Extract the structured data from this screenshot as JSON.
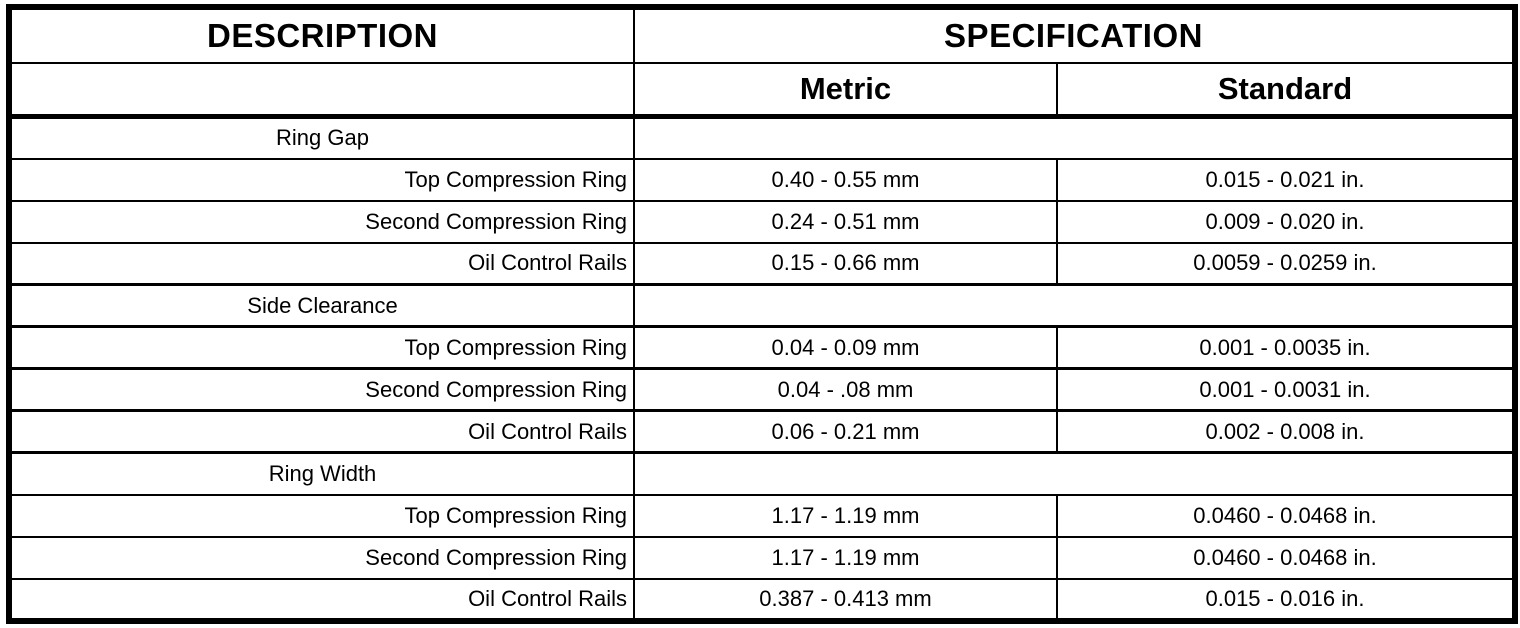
{
  "table": {
    "headers": {
      "description": "DESCRIPTION",
      "specification": "SPECIFICATION",
      "metric": "Metric",
      "standard": "Standard"
    },
    "rows": [
      {
        "type": "category",
        "label": "Ring Gap"
      },
      {
        "type": "item",
        "label": "Top Compression Ring",
        "metric": "0.40 - 0.55 mm",
        "standard": "0.015 - 0.021 in."
      },
      {
        "type": "item",
        "label": "Second Compression Ring",
        "metric": "0.24 - 0.51 mm",
        "standard": "0.009 - 0.020 in."
      },
      {
        "type": "item",
        "label": "Oil Control Rails",
        "metric": "0.15 - 0.66 mm",
        "standard": "0.0059 - 0.0259 in."
      },
      {
        "type": "category",
        "label": "Side Clearance"
      },
      {
        "type": "item",
        "label": "Top Compression Ring",
        "metric": "0.04 - 0.09 mm",
        "standard": "0.001 - 0.0035 in."
      },
      {
        "type": "item",
        "label": "Second Compression Ring",
        "metric": "0.04 - .08 mm",
        "standard": "0.001 - 0.0031 in."
      },
      {
        "type": "item",
        "label": "Oil Control Rails",
        "metric": "0.06 - 0.21 mm",
        "standard": "0.002 - 0.008 in."
      },
      {
        "type": "category",
        "label": "Ring Width"
      },
      {
        "type": "item",
        "label": "Top Compression Ring",
        "metric": "1.17 - 1.19 mm",
        "standard": "0.0460 - 0.0468 in."
      },
      {
        "type": "item",
        "label": "Second Compression Ring",
        "metric": "1.17 - 1.19 mm",
        "standard": "0.0460 - 0.0468 in."
      },
      {
        "type": "item",
        "label": "Oil Control Rails",
        "metric": "0.387 - 0.413 mm",
        "standard": "0.015 - 0.016 in."
      }
    ],
    "colors": {
      "border": "#000000",
      "background": "#ffffff",
      "text": "#000000"
    }
  }
}
